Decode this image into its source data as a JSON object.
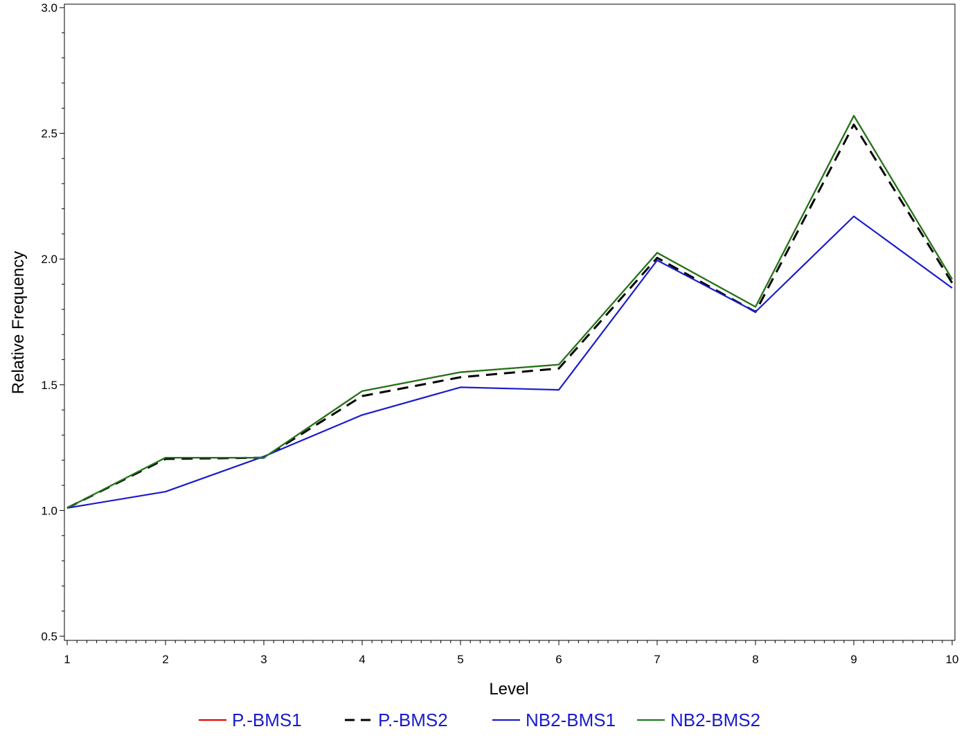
{
  "chart_data": {
    "type": "line",
    "title": "",
    "xlabel": "Level",
    "ylabel": "Relative Frequency",
    "x": [
      1,
      2,
      3,
      4,
      5,
      6,
      7,
      8,
      9,
      10
    ],
    "x_tick_labels": [
      "1",
      "2",
      "3",
      "4",
      "5",
      "6",
      "7",
      "8",
      "9",
      "10"
    ],
    "y_tick_labels": [
      "0.5",
      "1.0",
      "1.5",
      "2.0",
      "2.5",
      "3.0"
    ],
    "y_ticks": [
      0.5,
      1.0,
      1.5,
      2.0,
      2.5,
      3.0
    ],
    "xlim": [
      1,
      10
    ],
    "ylim": [
      0.48,
      3.0
    ],
    "grid": false,
    "legend_position": "bottom",
    "legend_text_color": "#1a1acc",
    "series": [
      {
        "name": "P.-BMS1",
        "color": "#e60000",
        "dash": "solid",
        "values": [
          1.01,
          1.21,
          1.21,
          1.475,
          1.55,
          1.58,
          2.025,
          1.81,
          2.57,
          1.92
        ]
      },
      {
        "name": "P.-BMS2",
        "color": "#000000",
        "dash": "dashed",
        "values": [
          1.01,
          1.205,
          1.21,
          1.455,
          1.53,
          1.565,
          2.005,
          1.79,
          2.535,
          1.905
        ]
      },
      {
        "name": "NB2-BMS1",
        "color": "#1a1acc",
        "dash": "solid",
        "values": [
          1.01,
          1.075,
          1.215,
          1.38,
          1.49,
          1.48,
          1.995,
          1.79,
          2.17,
          1.885
        ]
      },
      {
        "name": "NB2-BMS2",
        "color": "#1a7a1a",
        "dash": "solid",
        "values": [
          1.01,
          1.21,
          1.21,
          1.475,
          1.55,
          1.58,
          2.025,
          1.81,
          2.57,
          1.92
        ]
      }
    ]
  }
}
